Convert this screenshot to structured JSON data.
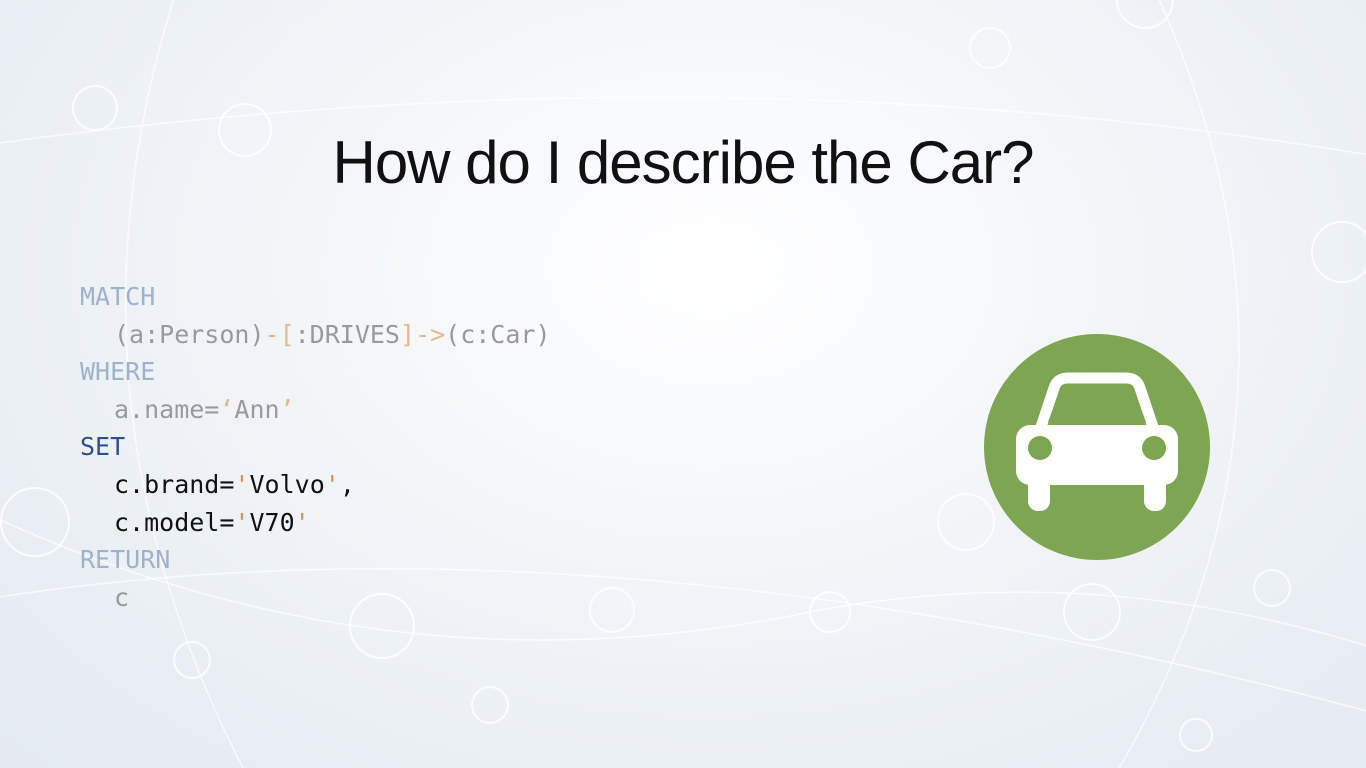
{
  "title": "How do I describe the Car?",
  "code": {
    "lines": [
      [
        "MATCH"
      ],
      [
        "(a:Person)",
        "-[",
        ":DRIVES",
        "]->",
        "(c:Car)"
      ],
      [
        "WHERE"
      ],
      [
        "a.name=",
        "‘",
        "Ann",
        "’"
      ],
      [
        "SET"
      ],
      [
        "c.brand=",
        "'",
        "Volvo",
        "'",
        ","
      ],
      [
        "c.model=",
        "'",
        "V70",
        "'"
      ],
      [
        "RETURN"
      ],
      [
        "c"
      ]
    ]
  }
}
